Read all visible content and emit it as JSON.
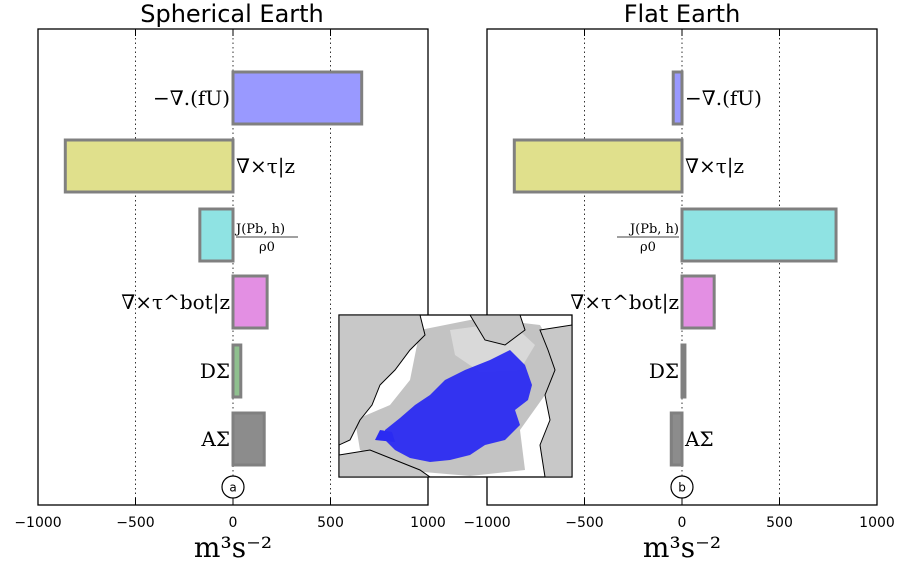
{
  "chart_data": [
    {
      "type": "bar",
      "orientation": "horizontal",
      "title": "Spherical Earth",
      "panel_label": "a",
      "xlabel": "m³s⁻²",
      "xlim": [
        -1000,
        1000
      ],
      "xticks": [
        "−1000",
        "−500",
        "0",
        "500",
        "1000"
      ],
      "categories": [
        "−∇.(fU)",
        "∇×τ|z",
        "J(Pb,h)/ρ0",
        "∇×τ^bot|z",
        "DΣ",
        "AΣ"
      ],
      "values": [
        660,
        -860,
        -170,
        175,
        40,
        160
      ],
      "colors": [
        "#9999ff",
        "#e0e08c",
        "#8fe3e3",
        "#e38fe3",
        "#8fc08f",
        "#8c8c8c"
      ]
    },
    {
      "type": "bar",
      "orientation": "horizontal",
      "title": "Flat Earth",
      "panel_label": "b",
      "xlabel": "m³s⁻²",
      "xlim": [
        -1000,
        1000
      ],
      "xticks": [
        "−1000",
        "−500",
        "0",
        "500",
        "1000"
      ],
      "categories": [
        "−∇.(fU)",
        "∇×τ|z",
        "J(Pb,h)/ρ0",
        "∇×τ^bot|z",
        "DΣ",
        "AΣ"
      ],
      "values": [
        -45,
        -860,
        790,
        165,
        15,
        -55
      ],
      "colors": [
        "#9999ff",
        "#e0e08c",
        "#8fe3e3",
        "#e38fe3",
        "#8fc08f",
        "#8c8c8c"
      ]
    }
  ],
  "map_inset": {
    "icon": "north-atlantic-map"
  }
}
